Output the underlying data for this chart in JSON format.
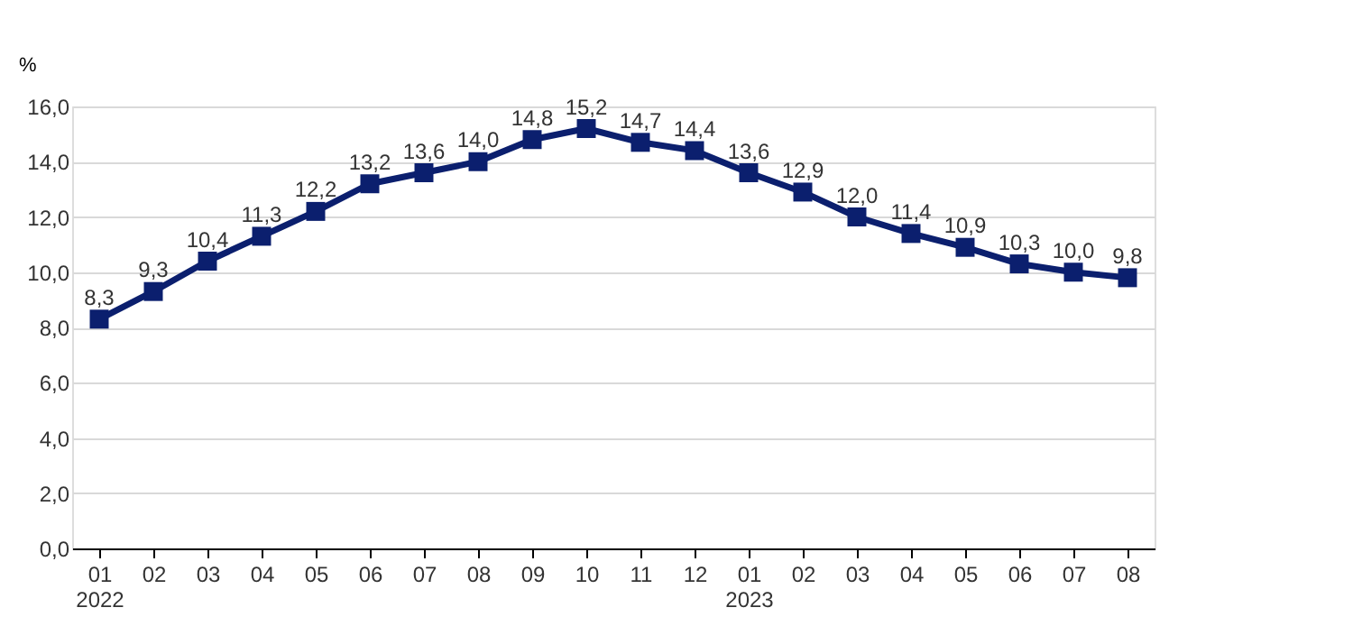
{
  "chart_data": {
    "type": "line",
    "categories": [
      "01\n2022",
      "02",
      "03",
      "04",
      "05",
      "06",
      "07",
      "08",
      "09",
      "10",
      "11",
      "12",
      "01\n2023",
      "02",
      "03",
      "04",
      "05",
      "06",
      "07",
      "08"
    ],
    "series": [
      {
        "color": "#0b1f6e",
        "values": [
          8.3,
          9.3,
          10.4,
          11.3,
          12.2,
          13.2,
          13.6,
          14.0,
          14.8,
          15.2,
          14.7,
          14.4,
          13.6,
          12.9,
          12.0,
          11.4,
          10.9,
          10.3,
          10.0,
          9.8
        ],
        "value_labels": [
          "8,3",
          "9,3",
          "10,4",
          "11,3",
          "12,2",
          "13,2",
          "13,6",
          "14,0",
          "14,8",
          "15,2",
          "14,7",
          "14,4",
          "13,6",
          "12,9",
          "12,0",
          "11,4",
          "10,9",
          "10,3",
          "10,0",
          "9,8"
        ]
      }
    ],
    "ylabel": "%",
    "ylim": [
      0,
      16
    ],
    "yticks": [
      {
        "value": 0,
        "label": "0,0"
      },
      {
        "value": 2,
        "label": "2,0"
      },
      {
        "value": 4,
        "label": "4,0"
      },
      {
        "value": 6,
        "label": "6,0"
      },
      {
        "value": 8,
        "label": "8,0"
      },
      {
        "value": 10,
        "label": "10,0"
      },
      {
        "value": 12,
        "label": "12,0"
      },
      {
        "value": 14,
        "label": "14,0"
      },
      {
        "value": 16,
        "label": "16,0"
      }
    ],
    "grid": "y",
    "marker": "square",
    "line_style": "solid",
    "legend": false
  }
}
